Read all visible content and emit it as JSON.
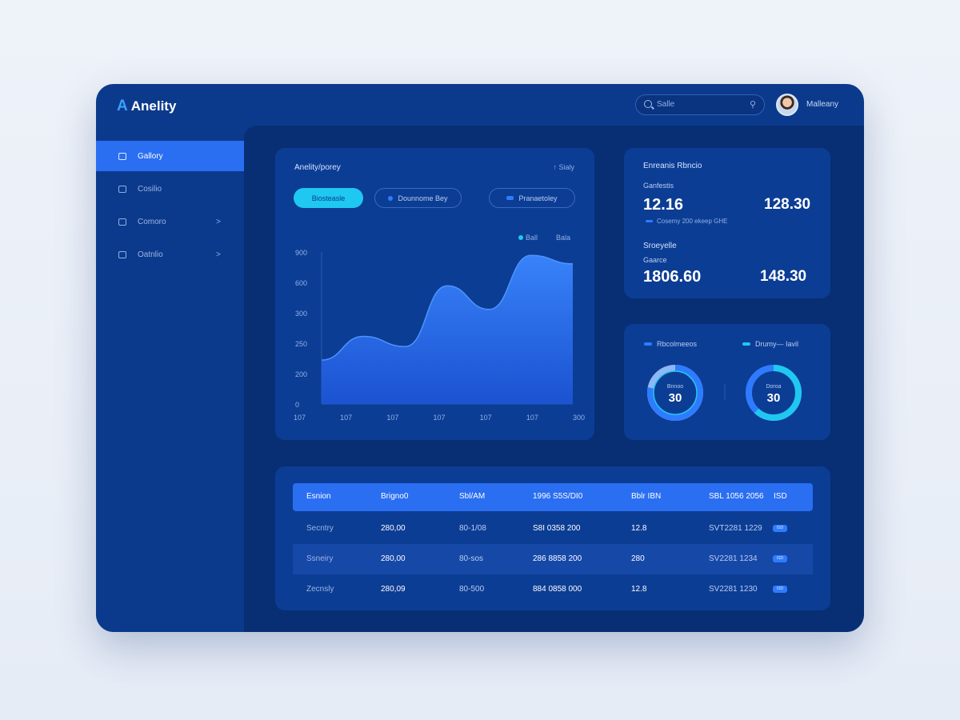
{
  "app": {
    "logo_mark": "A",
    "name": "Anelity"
  },
  "search": {
    "placeholder": "Salle",
    "filter_icon": "sliders-icon"
  },
  "user": {
    "name": "Malleany"
  },
  "sidebar": {
    "items": [
      {
        "label": "Gallory",
        "icon": "dashboard-icon",
        "active": true,
        "chevron": ""
      },
      {
        "label": "Cosilio",
        "icon": "folder-icon",
        "active": false,
        "chevron": ""
      },
      {
        "label": "Comoro",
        "icon": "grid-icon",
        "active": false,
        "chevron": ">"
      },
      {
        "label": "Oatnlio",
        "icon": "database-icon",
        "active": false,
        "chevron": ">"
      }
    ]
  },
  "chart_card": {
    "title": "Anelity/porey",
    "more": "Sialy",
    "pills": [
      "Biosteasle",
      "Dounnome Bey",
      "Pranaetoley"
    ],
    "legend": [
      "Ball",
      "Bala"
    ]
  },
  "chart_data": {
    "type": "area",
    "title": "Anelity/porey",
    "x": [
      "107",
      "107",
      "107",
      "107",
      "107",
      "107",
      "300"
    ],
    "y_ticks": [
      "0",
      "200",
      "250",
      "300",
      "600",
      "900"
    ],
    "ylim": [
      0,
      900
    ],
    "values": [
      260,
      400,
      340,
      700,
      560,
      880,
      830
    ],
    "series_colors": [
      "#2f7bff"
    ],
    "grid": false
  },
  "stats": {
    "title": "Enreanis Rbncio",
    "label1": "Ganfestis",
    "v1a": "12.16",
    "v1b": "128.30",
    "legend": "Cosemy 200 ekeep GHE",
    "label2": "Sroeyelle",
    "label3": "Gaarce",
    "v2a": "1806.60",
    "v2b": "148.30"
  },
  "donuts": {
    "legend1": "Rbcolmeeos",
    "legend2": "Drumy— Iavil",
    "d1_label": "Bnnoo",
    "d1_value": "30",
    "d2_label": "Doroa",
    "d2_value": "30",
    "d1_fraction": 0.78,
    "d2_fraction": 0.62,
    "color_primary": "#2f7bff",
    "color_accent": "#1fc8f0"
  },
  "table": {
    "headers": [
      "Esnion",
      "Brigno0",
      "Sbl/AM",
      "1996 S5S/DI0",
      "Bblr IBN",
      "SBL 1056 2056",
      "ISD"
    ],
    "rows": [
      [
        "Secntry",
        "280,00",
        "80-1/08",
        "S8I 0358 200",
        "12.8",
        "SVT2281 1229",
        "ISD"
      ],
      [
        "Ssneiry",
        "280,00",
        "80-sos",
        "286 8858 200",
        "280",
        "SV2281 1234",
        "ISD"
      ],
      [
        "Zecnsly",
        "280,09",
        "80-500",
        "884 0858 000",
        "12.8",
        "SV2281 1230",
        "ISD"
      ]
    ]
  }
}
